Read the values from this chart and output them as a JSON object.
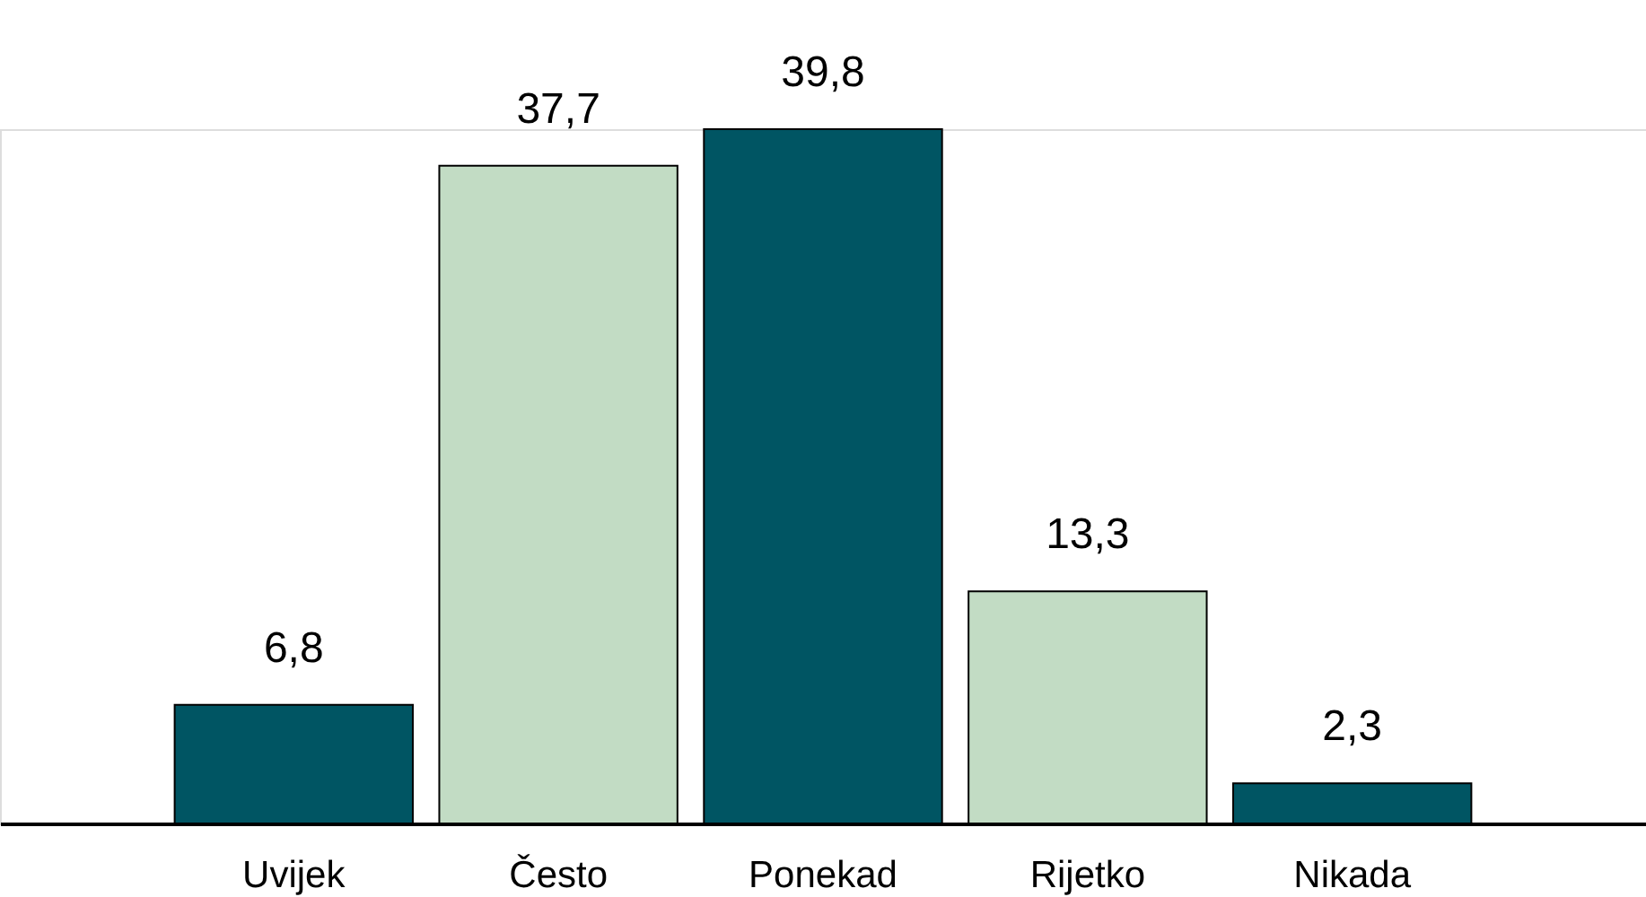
{
  "chart_data": {
    "type": "bar",
    "categories": [
      "Uvijek",
      "Često",
      "Ponekad",
      "Rijetko",
      "Nikada"
    ],
    "values": [
      6.8,
      37.7,
      39.8,
      13.3,
      2.3
    ],
    "value_labels": [
      "6,8",
      "37,7",
      "39,8",
      "13,3",
      "2,3"
    ],
    "colors": [
      "#005563",
      "#c2dcc4",
      "#005563",
      "#c2dcc4",
      "#005563"
    ]
  }
}
